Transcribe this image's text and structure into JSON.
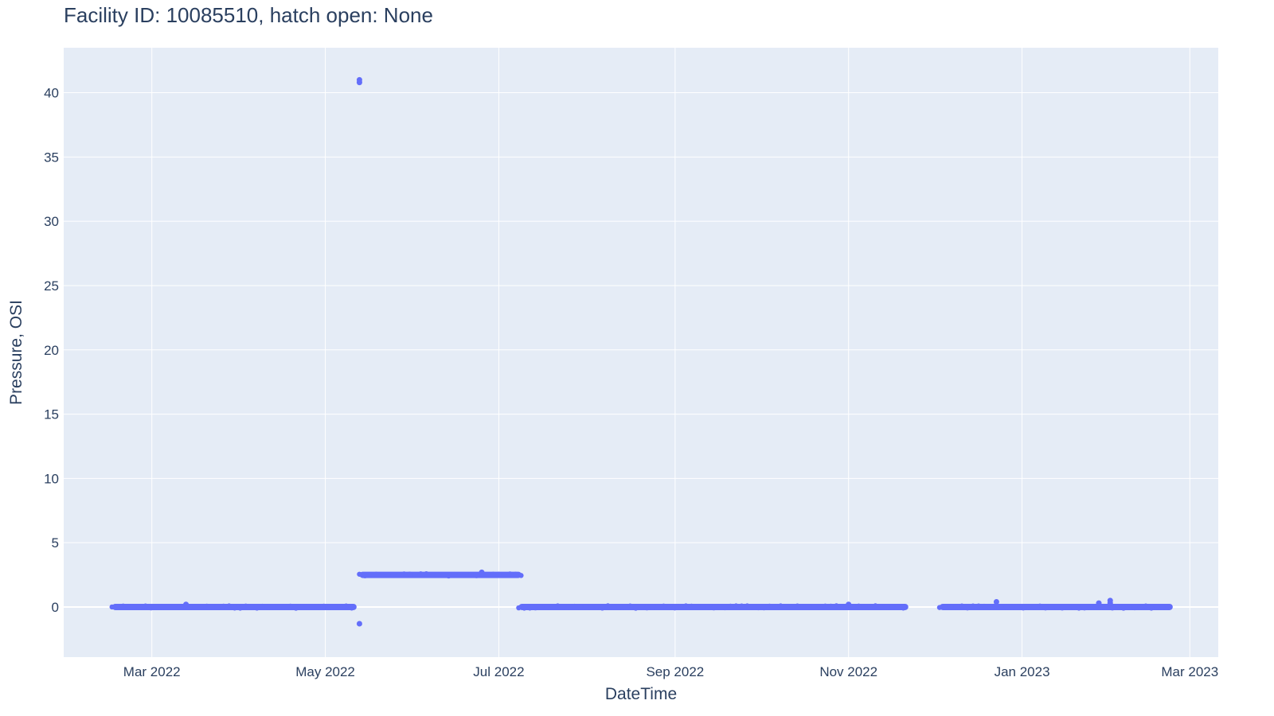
{
  "chart_data": {
    "type": "scatter",
    "title": "Facility ID: 10085510, hatch open: None",
    "xlabel": "DateTime",
    "ylabel": "Pressure, OSI",
    "xlim": [
      "2022-01-29",
      "2023-03-11"
    ],
    "ylim": [
      -3.9,
      43.5
    ],
    "x_ticks": [
      {
        "date": "2022-03-01",
        "label": "Mar 2022"
      },
      {
        "date": "2022-05-01",
        "label": "May 2022"
      },
      {
        "date": "2022-07-01",
        "label": "Jul 2022"
      },
      {
        "date": "2022-09-01",
        "label": "Sep 2022"
      },
      {
        "date": "2022-11-01",
        "label": "Nov 2022"
      },
      {
        "date": "2023-01-01",
        "label": "Jan 2023"
      },
      {
        "date": "2023-03-01",
        "label": "Mar 2023"
      }
    ],
    "y_ticks": [
      0,
      5,
      10,
      15,
      20,
      25,
      30,
      35,
      40
    ],
    "grid": true,
    "legend": "none",
    "colors": {
      "marker": "#636efa",
      "plot_bg": "#e5ecf6",
      "grid": "#ffffff",
      "text": "#2a3f5f"
    },
    "series": [
      {
        "segments": [
          {
            "start": "2022-02-15",
            "end": "2022-05-12",
            "value": 0.0
          },
          {
            "start": "2022-05-13",
            "end": "2022-07-09",
            "value": 2.5
          },
          {
            "start": "2022-07-08",
            "end": "2022-11-22",
            "value": 0.0
          },
          {
            "start": "2022-12-03",
            "end": "2023-02-23",
            "value": 0.0
          }
        ],
        "points": [
          {
            "x": "2022-05-13",
            "y": 41.0
          },
          {
            "x": "2022-05-13",
            "y": 40.8
          },
          {
            "x": "2022-05-13",
            "y": -1.3
          },
          {
            "x": "2022-03-13",
            "y": 0.2
          },
          {
            "x": "2022-06-25",
            "y": 2.7
          },
          {
            "x": "2022-11-01",
            "y": 0.2
          },
          {
            "x": "2022-12-23",
            "y": 0.4
          },
          {
            "x": "2023-02-01",
            "y": 0.5
          },
          {
            "x": "2023-02-01",
            "y": 0.3
          },
          {
            "x": "2023-01-28",
            "y": 0.3
          }
        ]
      }
    ]
  }
}
